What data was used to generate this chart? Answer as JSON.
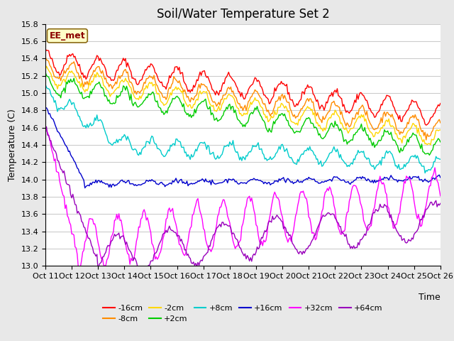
{
  "title": "Soil/Water Temperature Set 2",
  "xlabel": "Time",
  "ylabel": "Temperature (C)",
  "ylim": [
    13.0,
    15.7
  ],
  "xlim": [
    0,
    360
  ],
  "xtick_labels": [
    "Oct 11",
    "Oct 12",
    "Oct 13",
    "Oct 14",
    "Oct 15",
    "Oct 16",
    "Oct 17",
    "Oct 18",
    "Oct 19",
    "Oct 20",
    "Oct 21",
    "Oct 22",
    "Oct 23",
    "Oct 24",
    "Oct 25",
    "Oct 26"
  ],
  "annotation_text": "EE_met",
  "annotation_color": "#8B0000",
  "annotation_bg": "#FFFFC8",
  "annotation_border": "#8B6914",
  "series": [
    {
      "label": "-16cm",
      "color": "#FF0000"
    },
    {
      "label": "-8cm",
      "color": "#FF8C00"
    },
    {
      "label": "-2cm",
      "color": "#FFD700"
    },
    {
      "label": "+2cm",
      "color": "#00CC00"
    },
    {
      "label": "+8cm",
      "color": "#00CCCC"
    },
    {
      "label": "+16cm",
      "color": "#0000CC"
    },
    {
      "label": "+32cm",
      "color": "#FF00FF"
    },
    {
      "label": "+64cm",
      "color": "#9900BB"
    }
  ],
  "bg_color": "#E8E8E8",
  "plot_bg_color": "#FFFFFF",
  "grid_color": "#CCCCCC",
  "title_fontsize": 12,
  "axis_fontsize": 9,
  "tick_fontsize": 8,
  "legend_fontsize": 8
}
